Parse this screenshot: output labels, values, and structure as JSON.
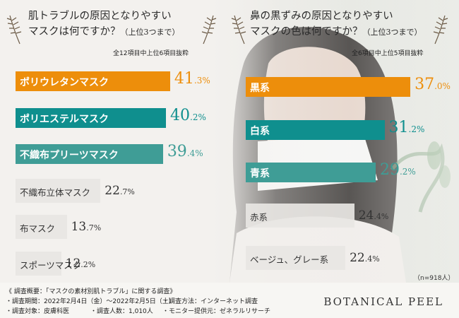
{
  "left": {
    "title_line1": "肌トラブルの原因となりやすい",
    "title_line2": "マスクは何ですか？",
    "title_small": "（上位3つまで）",
    "note": "全12項目中上位6項目抜粋",
    "chart_data": {
      "type": "bar",
      "orientation": "horizontal",
      "categories": [
        "ポリウレタンマスク",
        "ポリエステルマスク",
        "不織布プリーツマスク",
        "不織布立体マスク",
        "布マスク",
        "スポーツマスク"
      ],
      "values": [
        41.3,
        40.2,
        39.4,
        22.7,
        13.7,
        12.2
      ],
      "value_int": [
        "41",
        "40",
        "39",
        "22",
        "13",
        "12"
      ],
      "value_dec": [
        ".3%",
        ".2%",
        ".4%",
        ".7%",
        ".7%",
        ".2%"
      ],
      "colors": [
        "#ed8e0b",
        "#0f8f8e",
        "#3f9d96",
        "#e8e6e3",
        "#e8e6e3",
        "#e8e6e3"
      ],
      "value_colors": [
        "#ed8e0b",
        "#0f8f8e",
        "#3f9d96",
        "#333333",
        "#333333",
        "#333333"
      ],
      "unit": "%"
    }
  },
  "right": {
    "title_line1": "鼻の黒ずみの原因となりやすい",
    "title_line2": "マスクの色は何ですか？",
    "title_small": "（上位3つまで）",
    "note": "全6項目中上位5項目抜粋",
    "chart_data": {
      "type": "bar",
      "orientation": "horizontal",
      "categories": [
        "黒系",
        "白系",
        "青系",
        "赤系",
        "ベージュ、グレー系"
      ],
      "values": [
        37.0,
        31.2,
        29.2,
        24.4,
        22.4
      ],
      "value_int": [
        "37",
        "31",
        "29",
        "24",
        "22"
      ],
      "value_dec": [
        ".0%",
        ".2%",
        ".2%",
        ".4%",
        ".4%"
      ],
      "colors": [
        "#ed8e0b",
        "#0f8f8e",
        "#3f9d96",
        "#e8e6e3",
        "#e8e6e3"
      ],
      "value_colors": [
        "#ed8e0b",
        "#0f8f8e",
        "#3f9d96",
        "#333333",
        "#333333"
      ],
      "unit": "%"
    },
    "n": "（n=918人）"
  },
  "footer": {
    "line1": "《 調査概要：「マスクの素材別肌トラブル」に関する調査》",
    "col1": [
      "・調査期間：2022年2月4日（金）〜2022年2月5日（土）",
      "・調査対象：皮膚科医"
    ],
    "col2": [
      "",
      "・調査人数：1,010人"
    ],
    "col3": [
      "・調査方法：インターネット調査",
      "・モニター提供元：ゼネラルリサーチ"
    ]
  },
  "brand": "BOTANICAL PEEL"
}
